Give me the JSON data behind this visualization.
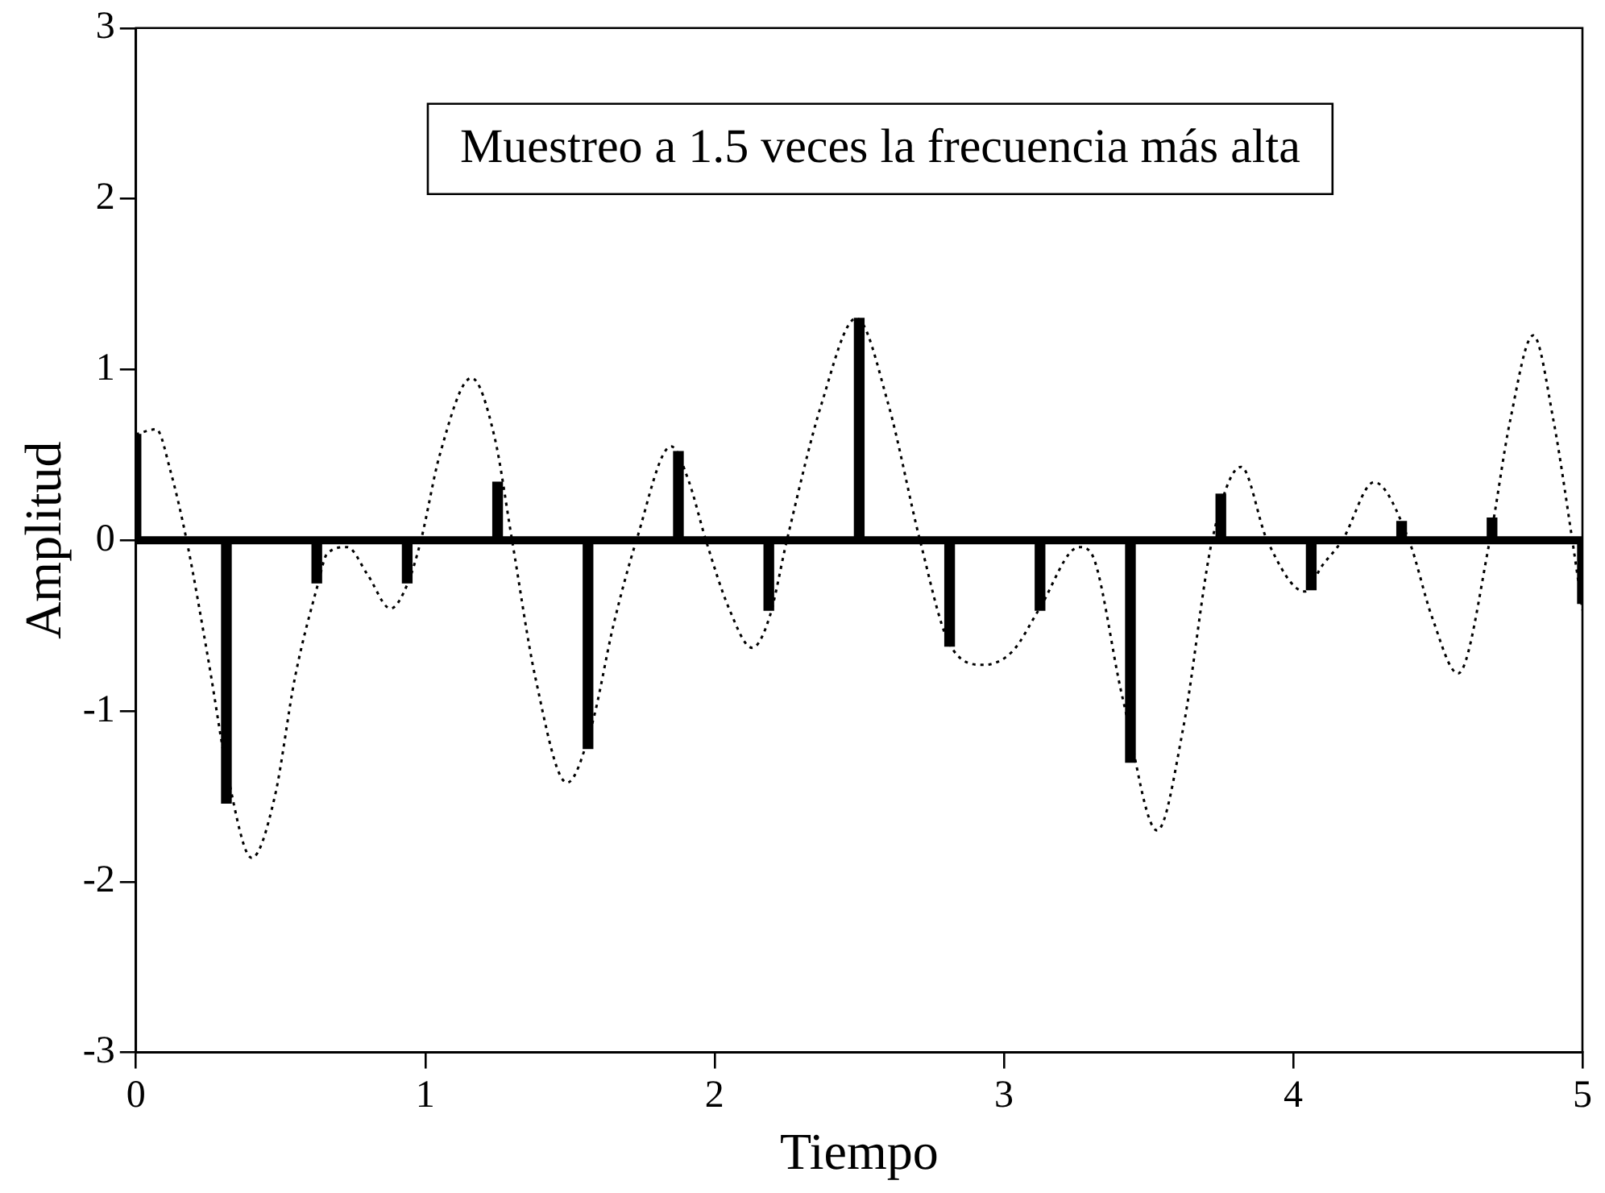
{
  "chart_data": {
    "type": "bar",
    "xlabel": "Tiempo",
    "ylabel": "Amplitud",
    "annotations": [
      "Muestreo a 1.5 veces la frecuencia más alta"
    ],
    "xlim": [
      0,
      5
    ],
    "xticks": [
      0,
      1,
      2,
      3,
      4,
      5
    ],
    "ylim": [
      -3,
      3
    ],
    "yticks": [
      -3,
      -2,
      -1,
      0,
      1,
      2,
      3
    ],
    "grid": false,
    "legend": false,
    "marker": "none",
    "ref_lines": [
      {
        "axis": "y",
        "value": 0,
        "color": "#000000"
      }
    ],
    "series": [
      {
        "color": "#000000",
        "x": [
          0,
          0.3125,
          0.625,
          0.9375,
          1.25,
          1.5625,
          1.875,
          2.1875,
          2.5,
          2.8125,
          3.125,
          3.4375,
          3.75,
          4.0625,
          4.375,
          4.6875,
          5
        ],
        "values": [
          0.62,
          -1.54,
          -0.25,
          -0.25,
          0.34,
          -1.22,
          0.52,
          -0.41,
          1.3,
          -0.62,
          -0.41,
          -1.3,
          0.27,
          -0.29,
          0.11,
          0.13,
          -0.37
        ]
      },
      {
        "type": "line",
        "color": "#000000",
        "line_style": "dotted",
        "x": [
          0,
          0.07,
          0.12,
          0.175,
          0.25,
          0.32,
          0.4,
          0.48,
          0.55,
          0.63,
          0.66,
          0.73,
          0.8,
          0.88,
          0.94,
          0.985,
          1.05,
          1.16,
          1.24,
          1.3,
          1.38,
          1.49,
          1.576,
          1.65,
          1.73,
          1.85,
          1.91,
          1.97,
          2.05,
          2.13,
          2.19,
          2.25,
          2.37,
          2.49,
          2.6,
          2.71,
          2.81,
          2.93,
          3.03,
          3.12,
          3.26,
          3.3,
          3.41,
          3.53,
          3.62,
          3.72,
          3.82,
          3.91,
          4.04,
          4.1,
          4.17,
          4.28,
          4.4,
          4.48,
          4.57,
          4.68,
          4.75,
          4.83,
          4.9,
          4.965,
          5.0
        ],
        "values": [
          0.62,
          0.65,
          0.4,
          0,
          -0.7,
          -1.4,
          -1.86,
          -1.5,
          -0.8,
          -0.25,
          -0.08,
          -0.04,
          -0.2,
          -0.4,
          -0.25,
          0,
          0.5,
          0.95,
          0.6,
          0,
          -0.8,
          -1.42,
          -1.08,
          -0.5,
          0,
          0.55,
          0.35,
          0,
          -0.4,
          -0.63,
          -0.45,
          0,
          0.8,
          1.3,
          0.8,
          0,
          -0.6,
          -0.73,
          -0.65,
          -0.41,
          -0.04,
          -0.07,
          -0.92,
          -1.7,
          -1.1,
          0,
          0.43,
          0,
          -0.3,
          -0.15,
          0,
          0.34,
          0,
          -0.45,
          -0.78,
          0,
          0.7,
          1.2,
          0.7,
          0,
          -0.41
        ]
      }
    ]
  }
}
